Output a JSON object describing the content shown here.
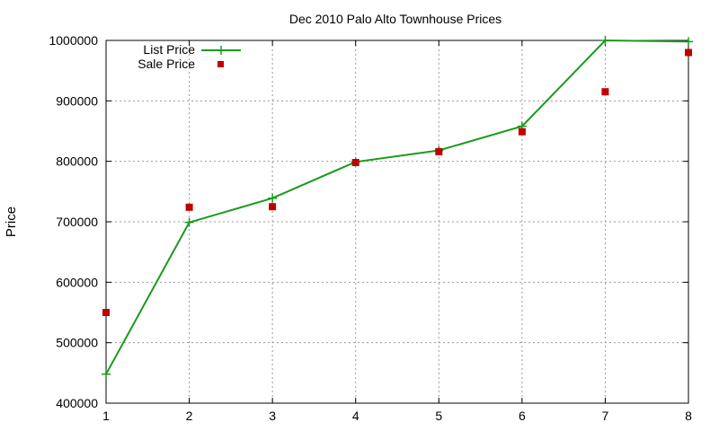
{
  "chart_data": {
    "type": "line",
    "title": "Dec 2010 Palo Alto Townhouse Prices",
    "xlabel": "",
    "ylabel": "Price",
    "x": [
      1,
      2,
      3,
      4,
      5,
      6,
      7,
      8
    ],
    "xlim": [
      1,
      8
    ],
    "ylim": [
      400000,
      1000000
    ],
    "x_ticks": [
      "1",
      "2",
      "3",
      "4",
      "5",
      "6",
      "7",
      "8"
    ],
    "y_ticks": [
      "400000",
      "500000",
      "600000",
      "700000",
      "800000",
      "900000",
      "1000000"
    ],
    "grid": true,
    "legend_position": "top-left",
    "series": [
      {
        "name": "List Price",
        "style": "line-with-plus-markers",
        "color": "#1a9a1a",
        "values": [
          448000,
          699000,
          739000,
          799000,
          818000,
          858000,
          1000000,
          998000
        ]
      },
      {
        "name": "Sale Price",
        "style": "square-markers",
        "color": "#c00000",
        "values": [
          550000,
          724000,
          725000,
          798000,
          816000,
          849000,
          915000,
          980000
        ]
      }
    ]
  }
}
